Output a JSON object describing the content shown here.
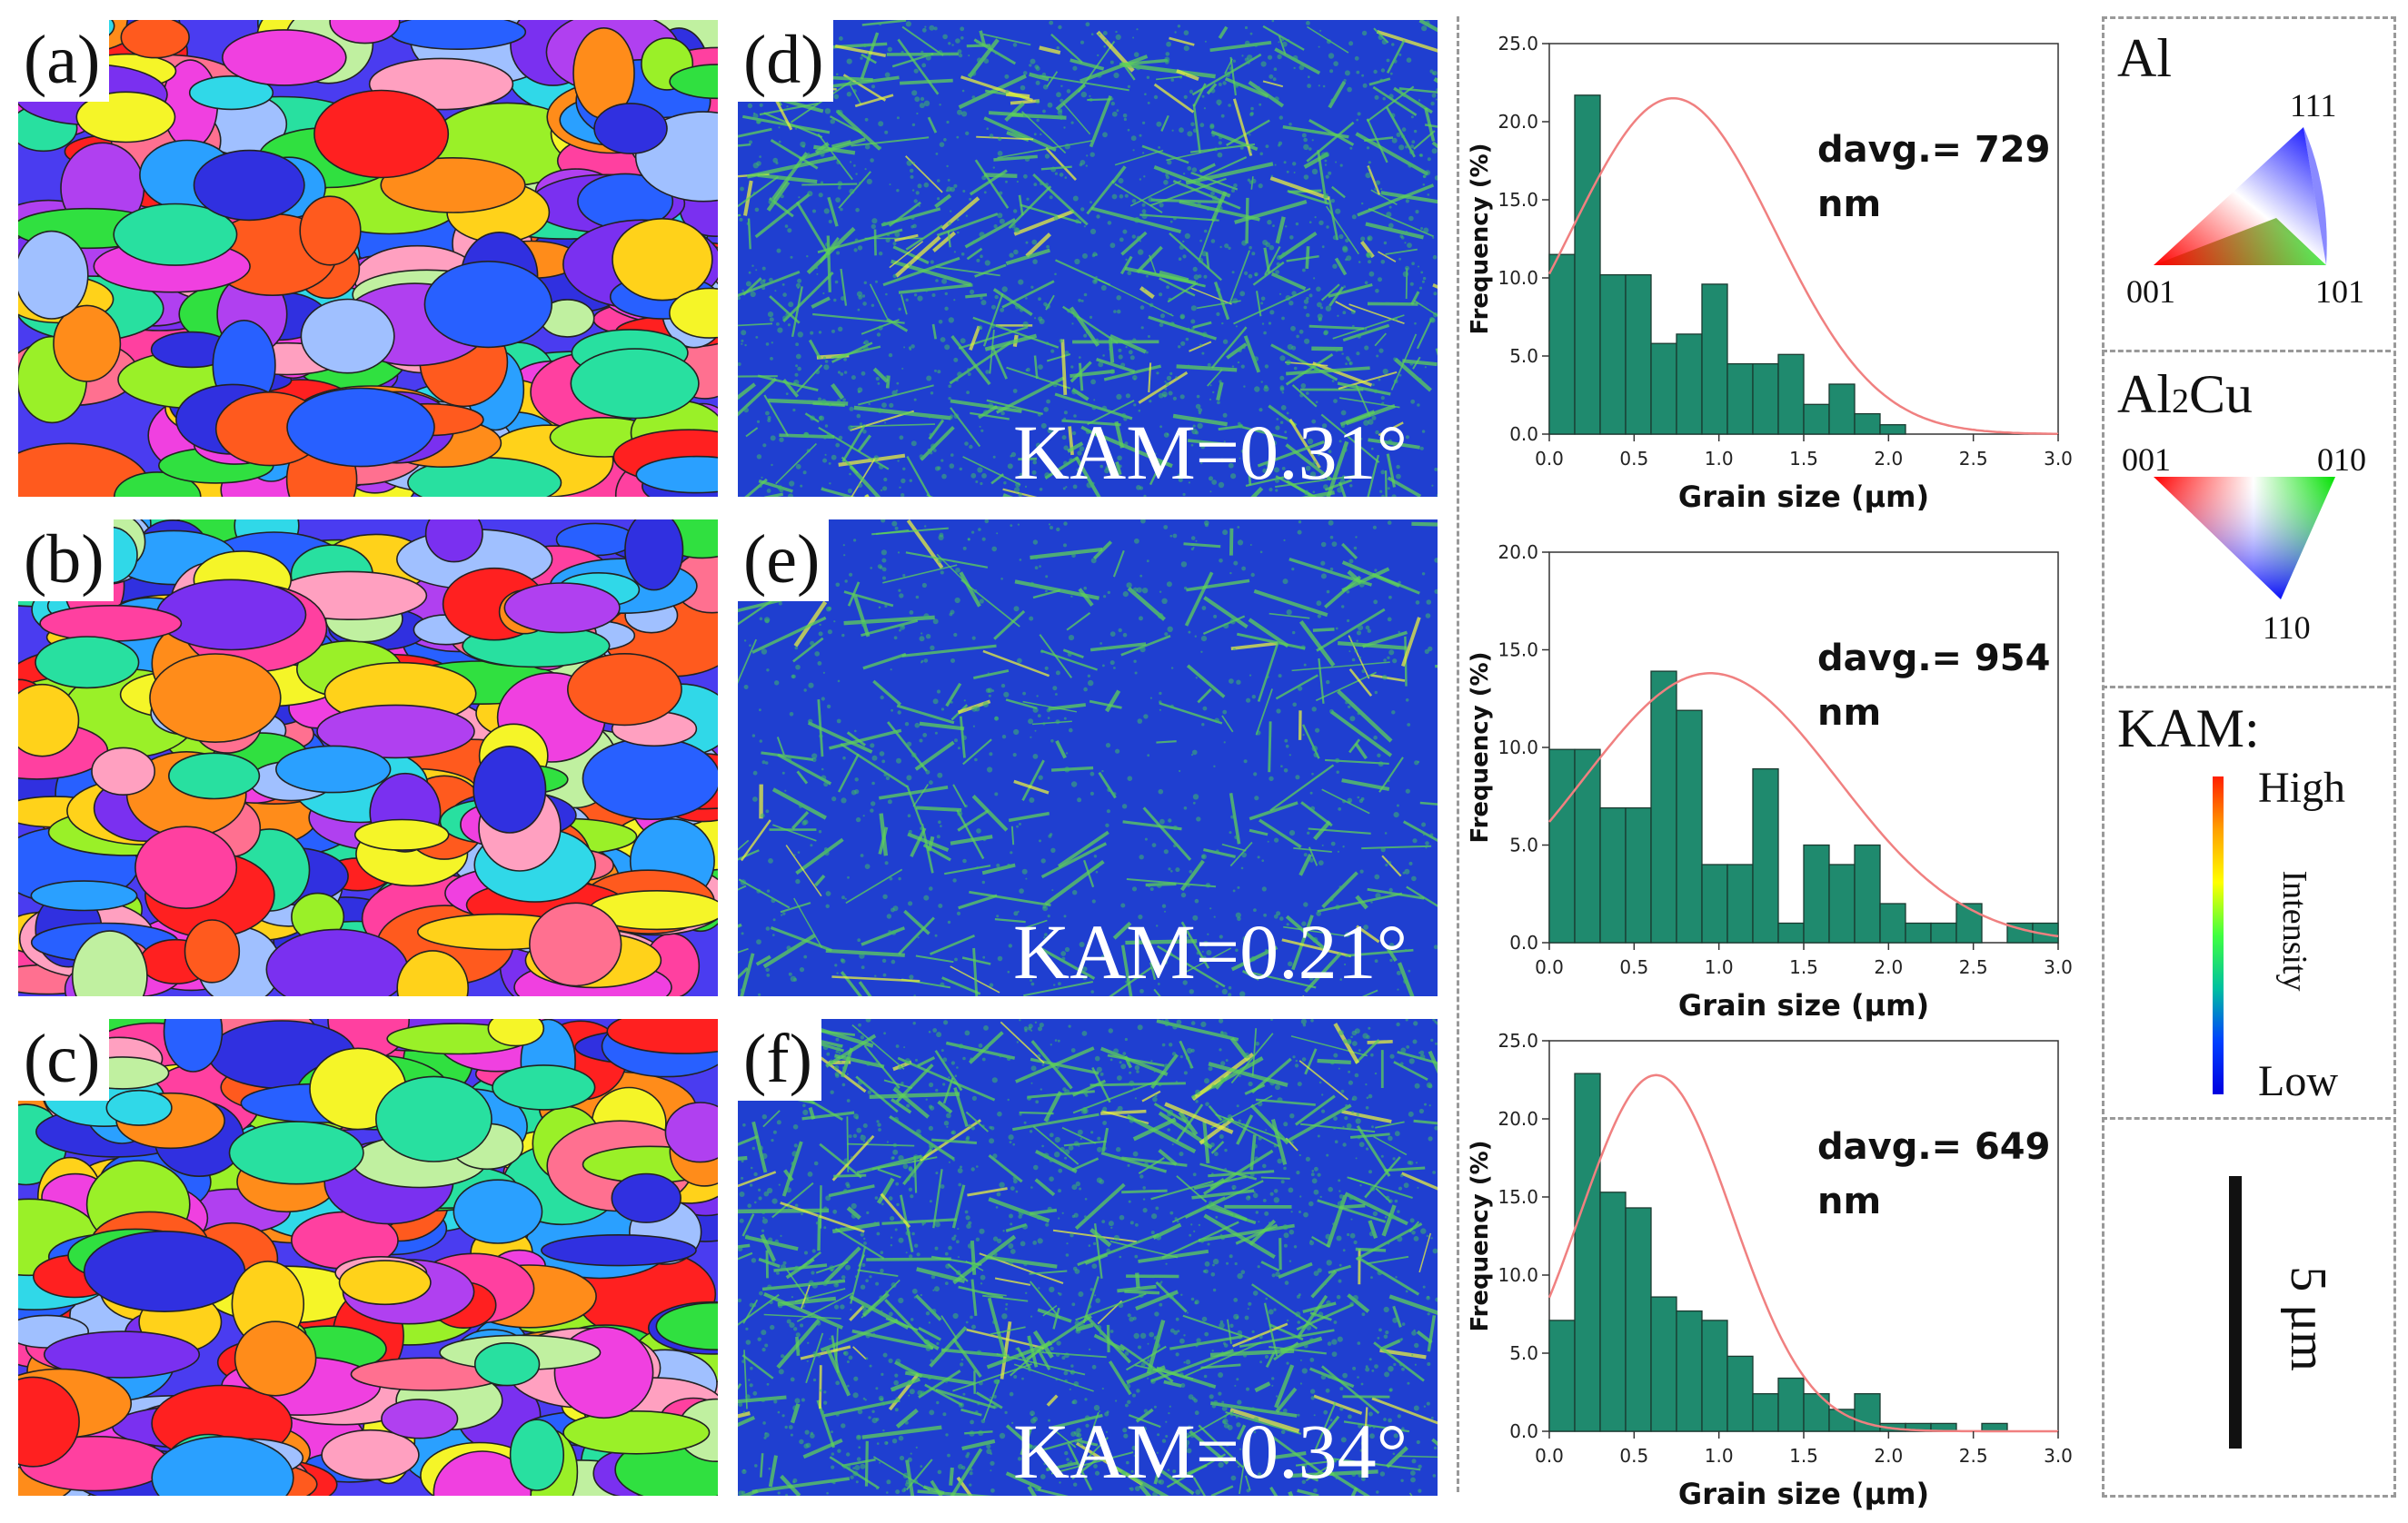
{
  "figure": {
    "panels": {
      "ipf": [
        {
          "label": "(a)"
        },
        {
          "label": "(b)"
        },
        {
          "label": "(c)"
        }
      ],
      "kam": [
        {
          "label": "(d)",
          "kam_text": "KAM=0.31°"
        },
        {
          "label": "(e)",
          "kam_text": "KAM=0.21°"
        },
        {
          "label": "(f)",
          "kam_text": "KAM=0.34°"
        }
      ]
    },
    "legend": {
      "al": {
        "title": "Al",
        "v_top": "111",
        "v_left": "001",
        "v_right": "101"
      },
      "al2cu": {
        "title_main": "Al",
        "title_sub": "2",
        "title_tail": "Cu",
        "v_left": "001",
        "v_right": "010",
        "v_bottom": "110"
      },
      "kam": {
        "title": "KAM:",
        "high": "High",
        "low": "Low",
        "axis": "Intensity"
      },
      "scale": {
        "label": "5 μm"
      }
    },
    "colors": {
      "bar_fill": "#1f8a6e",
      "curve": "#f08080",
      "kam_bg": "#1f3fd0",
      "kam_green": "#5fd05a"
    }
  },
  "chart_data": [
    {
      "type": "bar",
      "title": "",
      "xlabel": "Grain size (μm)",
      "ylabel": "Frequency (%)",
      "xlim": [
        0,
        3.0
      ],
      "ylim": [
        0,
        25.0
      ],
      "xticks": [
        "0.0",
        "0.5",
        "1.0",
        "1.5",
        "2.0",
        "2.5",
        "3.0"
      ],
      "yticks": [
        "0.0",
        "5.0",
        "10.0",
        "15.0",
        "20.0",
        "25.0"
      ],
      "bin_width": 0.15,
      "bin_starts": [
        0.0,
        0.15,
        0.3,
        0.45,
        0.6,
        0.75,
        0.9,
        1.05,
        1.2,
        1.35,
        1.5,
        1.65,
        1.8,
        1.95
      ],
      "values": [
        11.5,
        21.7,
        10.2,
        10.2,
        5.8,
        6.4,
        9.6,
        4.5,
        4.5,
        5.1,
        1.9,
        3.2,
        1.3,
        0.6
      ],
      "fit_curve": {
        "type": "normal",
        "mean": 0.73,
        "peak": 21.5,
        "sigma": 0.6
      },
      "annotation_line1": "davg.= 729",
      "annotation_line2": "nm"
    },
    {
      "type": "bar",
      "title": "",
      "xlabel": "Grain size (μm)",
      "ylabel": "Frequency (%)",
      "xlim": [
        0,
        3.0
      ],
      "ylim": [
        0,
        20.0
      ],
      "xticks": [
        "0.0",
        "0.5",
        "1.0",
        "1.5",
        "2.0",
        "2.5",
        "3.0"
      ],
      "yticks": [
        "0.0",
        "5.0",
        "10.0",
        "15.0",
        "20.0"
      ],
      "bin_width": 0.15,
      "bin_starts": [
        0.0,
        0.15,
        0.3,
        0.45,
        0.6,
        0.75,
        0.9,
        1.05,
        1.2,
        1.35,
        1.5,
        1.65,
        1.8,
        1.95,
        2.1,
        2.25,
        2.4,
        2.55,
        2.7,
        2.85
      ],
      "values": [
        9.9,
        9.9,
        6.9,
        6.9,
        13.9,
        11.9,
        4.0,
        4.0,
        8.9,
        1.0,
        5.0,
        4.0,
        5.0,
        2.0,
        1.0,
        1.0,
        2.0,
        0.0,
        1.0,
        1.0
      ],
      "fit_curve": {
        "type": "normal",
        "mean": 0.95,
        "peak": 13.8,
        "sigma": 0.75
      },
      "annotation_line1": "davg.= 954",
      "annotation_line2": "nm"
    },
    {
      "type": "bar",
      "title": "",
      "xlabel": "Grain size (μm)",
      "ylabel": "Frequency (%)",
      "xlim": [
        0,
        3.0
      ],
      "ylim": [
        0,
        25.0
      ],
      "xticks": [
        "0.0",
        "0.5",
        "1.0",
        "1.5",
        "2.0",
        "2.5",
        "3.0"
      ],
      "yticks": [
        "0.0",
        "5.0",
        "10.0",
        "15.0",
        "20.0",
        "25.0"
      ],
      "bin_width": 0.15,
      "bin_starts": [
        0.0,
        0.15,
        0.3,
        0.45,
        0.6,
        0.75,
        0.9,
        1.05,
        1.2,
        1.35,
        1.5,
        1.65,
        1.8,
        1.95,
        2.1,
        2.25,
        2.4,
        2.55
      ],
      "values": [
        7.1,
        22.9,
        15.3,
        14.3,
        8.6,
        7.7,
        7.1,
        4.8,
        2.4,
        3.4,
        2.4,
        1.4,
        2.4,
        0.5,
        0.5,
        0.5,
        0.0,
        0.5
      ],
      "fit_curve": {
        "type": "normal",
        "mean": 0.63,
        "peak": 22.8,
        "sigma": 0.45
      },
      "annotation_line1": "davg.= 649",
      "annotation_line2": "nm"
    }
  ]
}
